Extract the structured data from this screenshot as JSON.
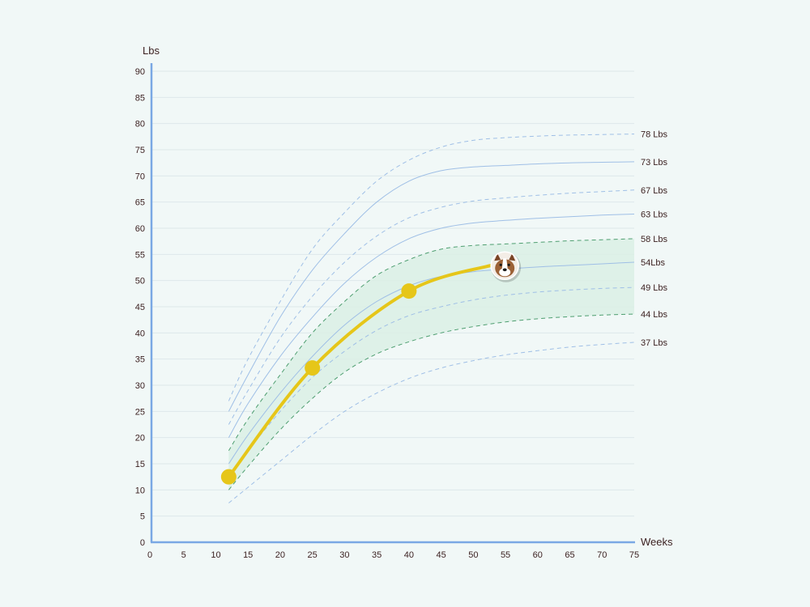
{
  "chart_data": {
    "type": "line",
    "xlabel": "Weeks",
    "ylabel": "Lbs",
    "xlim": [
      0,
      75
    ],
    "ylim": [
      0,
      90
    ],
    "xticks": [
      0,
      5,
      10,
      15,
      20,
      25,
      30,
      35,
      40,
      45,
      50,
      55,
      60,
      65,
      70,
      75
    ],
    "yticks": [
      0,
      5,
      10,
      15,
      20,
      25,
      30,
      35,
      40,
      45,
      50,
      55,
      60,
      65,
      70,
      75,
      80,
      85,
      90
    ],
    "grid": true,
    "reference_curves": [
      {
        "label": "78 Lbs",
        "style": "dashed",
        "color": "#9fbfe6",
        "points": [
          [
            12,
            27
          ],
          [
            15,
            35
          ],
          [
            20,
            46
          ],
          [
            25,
            56
          ],
          [
            30,
            63
          ],
          [
            35,
            69
          ],
          [
            40,
            73
          ],
          [
            45,
            75.5
          ],
          [
            50,
            76.8
          ],
          [
            55,
            77.3
          ],
          [
            60,
            77.6
          ],
          [
            65,
            77.8
          ],
          [
            70,
            77.9
          ],
          [
            75,
            78
          ]
        ]
      },
      {
        "label": "73 Lbs",
        "style": "solid",
        "color": "#9fbfe6",
        "points": [
          [
            12,
            25
          ],
          [
            15,
            32
          ],
          [
            20,
            43
          ],
          [
            25,
            52
          ],
          [
            30,
            59
          ],
          [
            35,
            65
          ],
          [
            40,
            69
          ],
          [
            45,
            71
          ],
          [
            50,
            71.7
          ],
          [
            55,
            72
          ],
          [
            60,
            72.3
          ],
          [
            65,
            72.5
          ],
          [
            70,
            72.6
          ],
          [
            75,
            72.7
          ]
        ]
      },
      {
        "label": "67 Lbs",
        "style": "dashed",
        "color": "#9fbfe6",
        "points": [
          [
            12,
            22.5
          ],
          [
            15,
            29
          ],
          [
            20,
            39
          ],
          [
            25,
            47
          ],
          [
            30,
            53.5
          ],
          [
            35,
            58.5
          ],
          [
            40,
            62
          ],
          [
            45,
            64
          ],
          [
            50,
            65.2
          ],
          [
            55,
            65.8
          ],
          [
            60,
            66.3
          ],
          [
            65,
            66.7
          ],
          [
            70,
            67
          ],
          [
            75,
            67.3
          ]
        ]
      },
      {
        "label": "63 Lbs",
        "style": "solid",
        "color": "#9fbfe6",
        "points": [
          [
            12,
            20
          ],
          [
            15,
            26.5
          ],
          [
            20,
            35.5
          ],
          [
            25,
            43
          ],
          [
            30,
            49.5
          ],
          [
            35,
            54.5
          ],
          [
            40,
            58
          ],
          [
            45,
            60
          ],
          [
            50,
            61
          ],
          [
            55,
            61.5
          ],
          [
            60,
            61.9
          ],
          [
            65,
            62.2
          ],
          [
            70,
            62.5
          ],
          [
            75,
            62.7
          ]
        ]
      },
      {
        "label": "58 Lbs",
        "style": "dashed",
        "color": "#4e9e70",
        "points": [
          [
            12,
            17.5
          ],
          [
            15,
            23.5
          ],
          [
            20,
            32
          ],
          [
            25,
            40
          ],
          [
            30,
            46
          ],
          [
            35,
            51
          ],
          [
            40,
            54
          ],
          [
            45,
            56
          ],
          [
            50,
            56.7
          ],
          [
            55,
            57
          ],
          [
            60,
            57.3
          ],
          [
            65,
            57.6
          ],
          [
            70,
            57.8
          ],
          [
            75,
            58
          ]
        ]
      },
      {
        "label": "54Lbs",
        "style": "solid",
        "color": "#9fbfe6",
        "points": [
          [
            12,
            15
          ],
          [
            15,
            20.5
          ],
          [
            20,
            28.5
          ],
          [
            25,
            35.5
          ],
          [
            30,
            41.5
          ],
          [
            35,
            46
          ],
          [
            40,
            49
          ],
          [
            45,
            50.8
          ],
          [
            50,
            51.7
          ],
          [
            55,
            52.2
          ],
          [
            60,
            52.6
          ],
          [
            65,
            52.9
          ],
          [
            70,
            53.2
          ],
          [
            75,
            53.5
          ]
        ]
      },
      {
        "label": "49 Lbs",
        "style": "dashed",
        "color": "#9fbfe6",
        "points": [
          [
            12,
            12.5
          ],
          [
            15,
            17.5
          ],
          [
            20,
            25
          ],
          [
            25,
            31.5
          ],
          [
            30,
            36.5
          ],
          [
            35,
            40.5
          ],
          [
            40,
            43.3
          ],
          [
            45,
            45
          ],
          [
            50,
            46.3
          ],
          [
            55,
            47.2
          ],
          [
            60,
            47.8
          ],
          [
            65,
            48.2
          ],
          [
            70,
            48.5
          ],
          [
            75,
            48.7
          ]
        ]
      },
      {
        "label": "44 Lbs",
        "style": "dashed",
        "color": "#4e9e70",
        "points": [
          [
            12,
            10
          ],
          [
            15,
            14.5
          ],
          [
            20,
            21.5
          ],
          [
            25,
            27.5
          ],
          [
            30,
            32.5
          ],
          [
            35,
            36
          ],
          [
            40,
            38.3
          ],
          [
            45,
            40
          ],
          [
            50,
            41.2
          ],
          [
            55,
            42.1
          ],
          [
            60,
            42.7
          ],
          [
            65,
            43.1
          ],
          [
            70,
            43.4
          ],
          [
            75,
            43.6
          ]
        ]
      },
      {
        "label": "37 Lbs",
        "style": "dashed",
        "color": "#9fbfe6",
        "points": [
          [
            12,
            7.5
          ],
          [
            15,
            10.5
          ],
          [
            20,
            15.5
          ],
          [
            25,
            20.5
          ],
          [
            30,
            25
          ],
          [
            35,
            28.5
          ],
          [
            40,
            31.3
          ],
          [
            45,
            33.3
          ],
          [
            50,
            34.7
          ],
          [
            55,
            35.8
          ],
          [
            60,
            36.6
          ],
          [
            65,
            37.3
          ],
          [
            70,
            37.8
          ],
          [
            75,
            38.2
          ]
        ]
      }
    ],
    "band": {
      "upper": "58 Lbs",
      "lower": "44 Lbs",
      "color": "#dcefe6"
    },
    "series": [
      {
        "color": "#e6c619",
        "x": [
          12,
          25,
          40,
          53
        ],
        "y": [
          12.5,
          33.3,
          48,
          53
        ],
        "markers": [
          true,
          true,
          true,
          false
        ],
        "end_icon": "bulldog-puppy-icon"
      }
    ]
  }
}
